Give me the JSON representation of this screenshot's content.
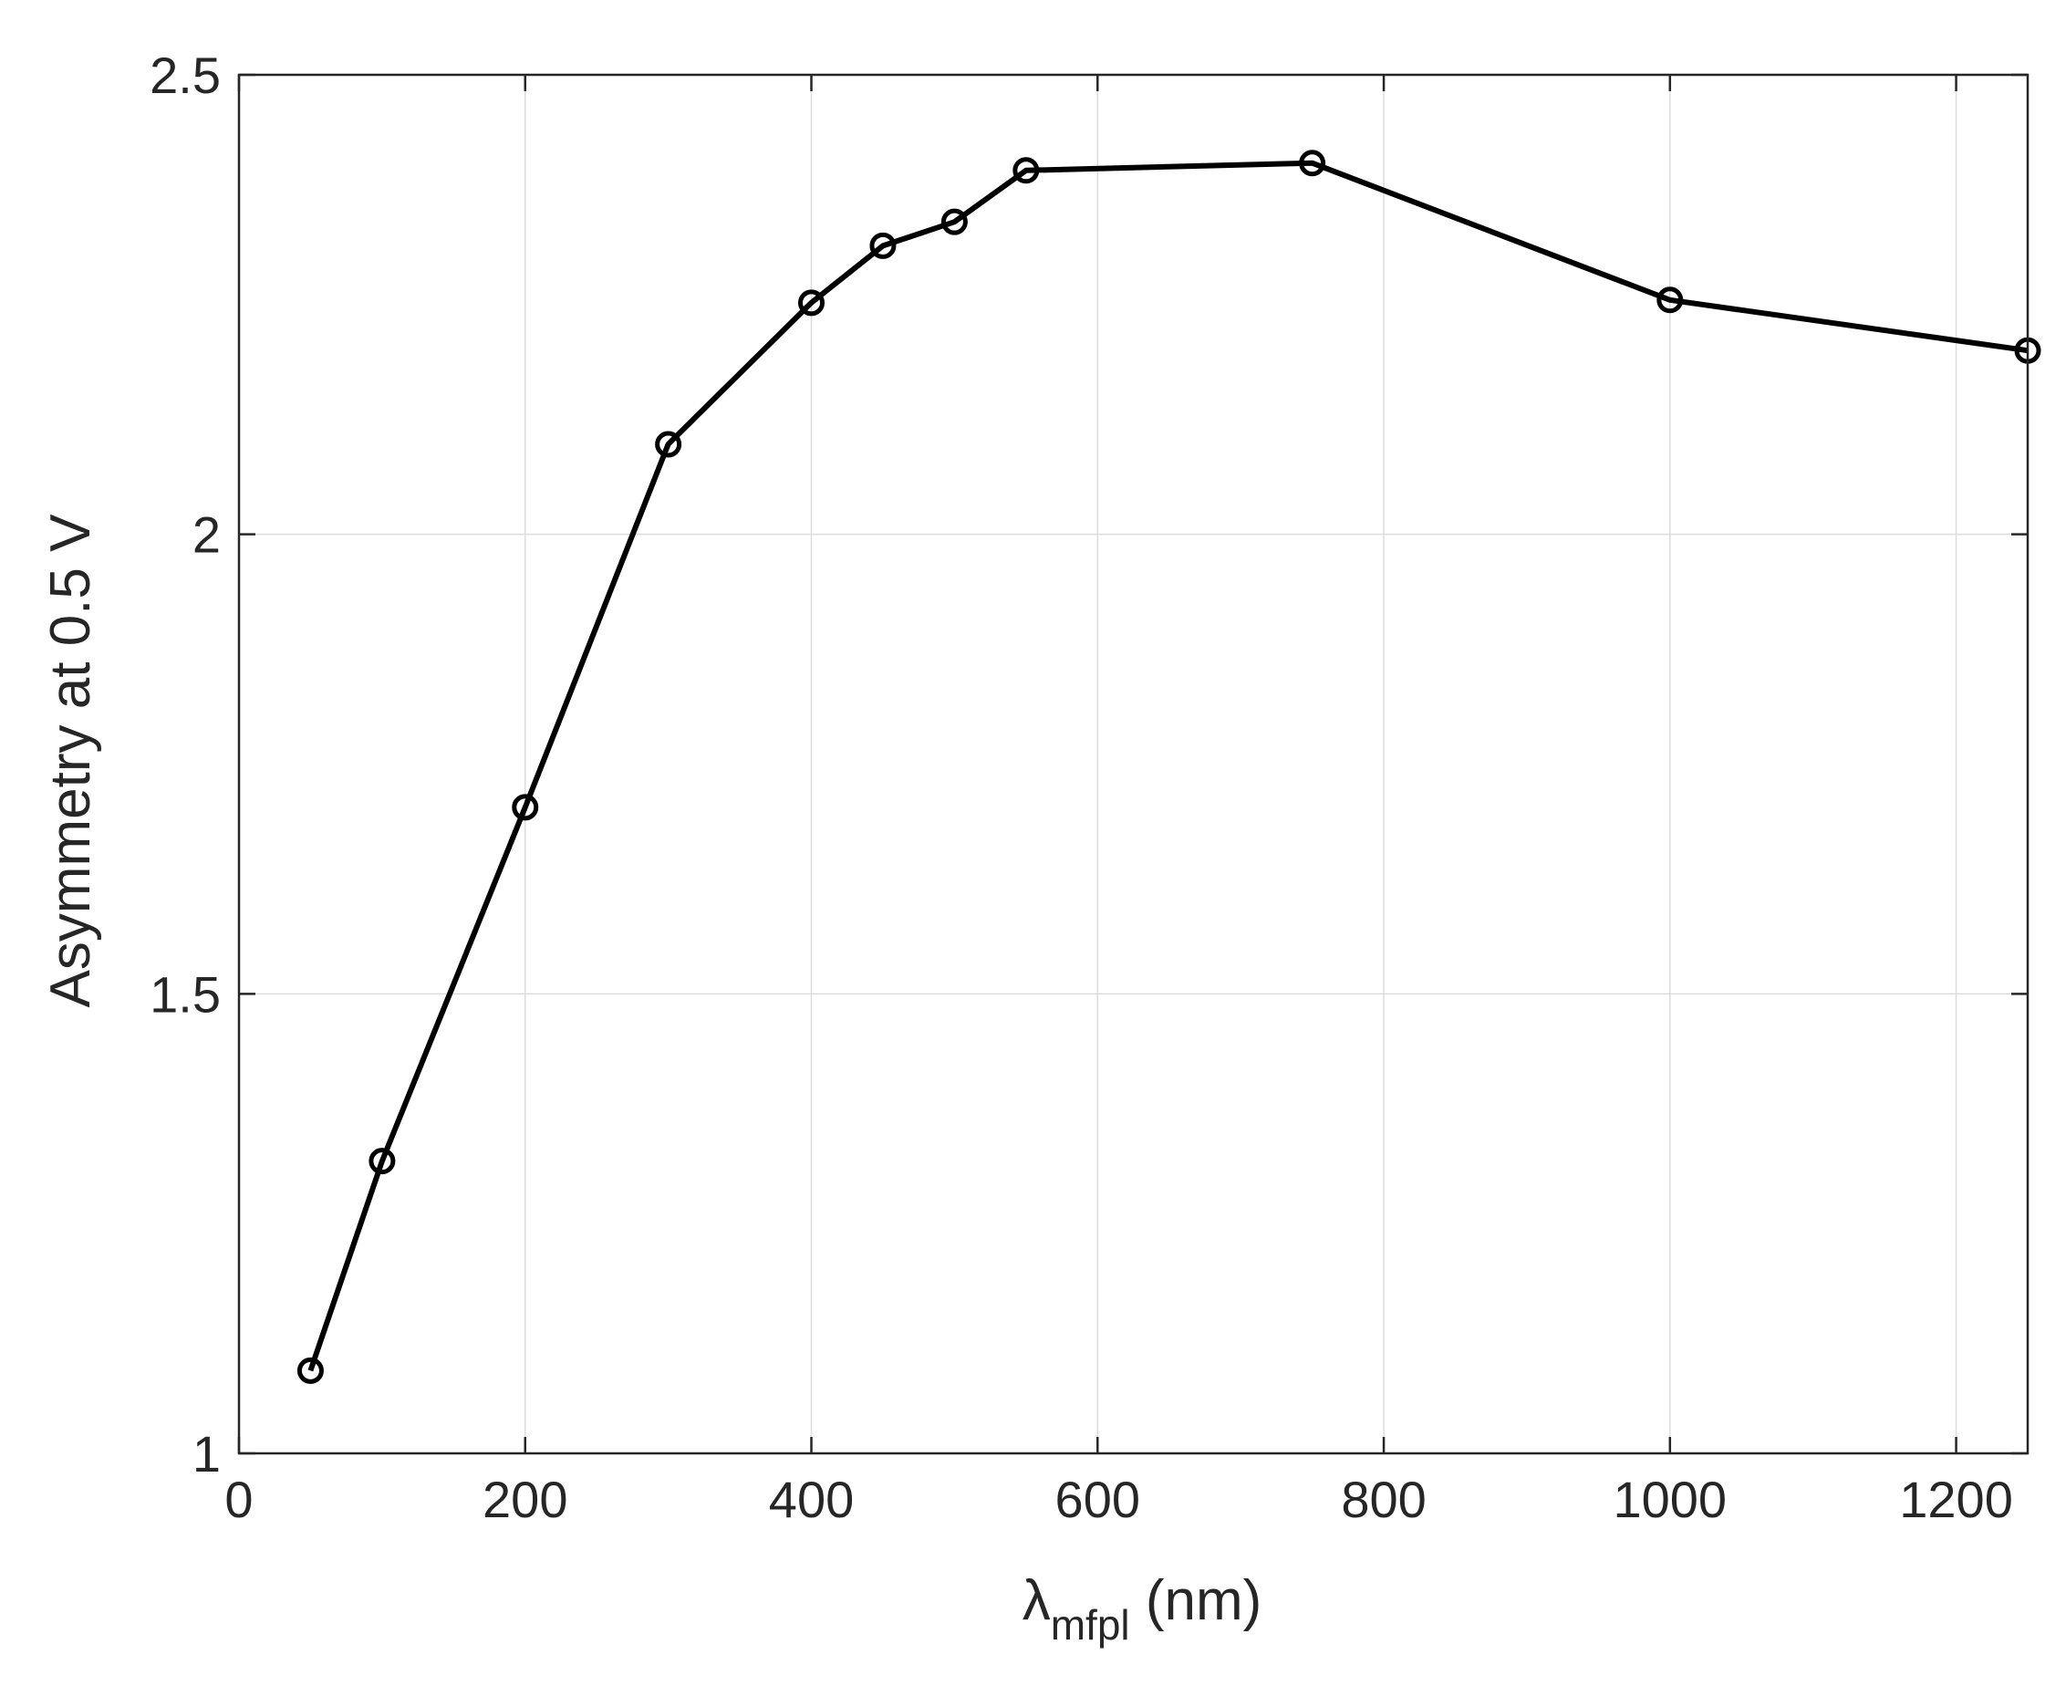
{
  "chart_data": {
    "type": "line",
    "title": "",
    "xlabel": {
      "main": "λ",
      "sub": "mfpl",
      "unit": " (nm)"
    },
    "ylabel": "Asymmetry at 0.5 V",
    "xlim": [
      0,
      1250
    ],
    "ylim": [
      1,
      2.5
    ],
    "xticks": [
      0,
      200,
      400,
      600,
      800,
      1000,
      1200
    ],
    "xtick_labels": [
      "0",
      "200",
      "400",
      "600",
      "800",
      "1000",
      "1200"
    ],
    "yticks": [
      1,
      1.5,
      2,
      2.5
    ],
    "ytick_labels": [
      "1",
      "1.5",
      "2",
      "2.5"
    ],
    "grid": true,
    "series": [
      {
        "x": [
          50,
          100,
          200,
          300,
          400,
          450,
          500,
          550,
          750,
          1000,
          1250
        ],
        "y": [
          1.09,
          1.318,
          1.703,
          2.098,
          2.252,
          2.314,
          2.34,
          2.396,
          2.404,
          2.255,
          2.2
        ],
        "color": "#000000",
        "marker": "circle"
      }
    ]
  }
}
